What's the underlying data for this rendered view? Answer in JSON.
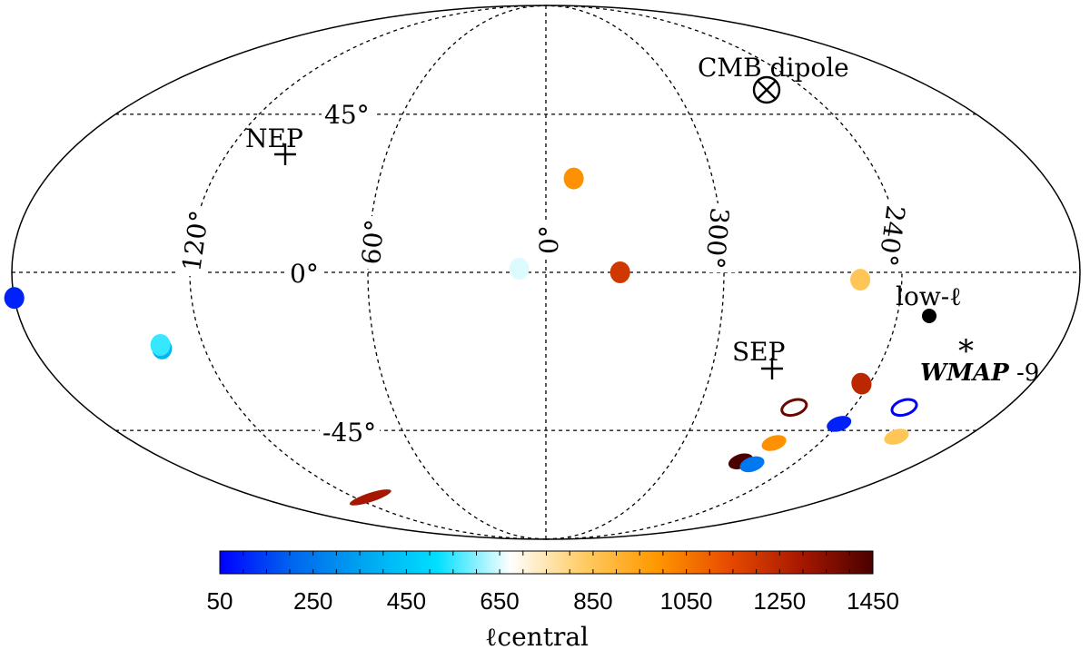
{
  "chart_data": {
    "type": "scatter",
    "projection": "mollweide",
    "title": "",
    "grid": true,
    "longitude_labels": [
      {
        "lon": 120,
        "text": "120°"
      },
      {
        "lon": 60,
        "text": "60°"
      },
      {
        "lon": 0,
        "text": "0°"
      },
      {
        "lon": 300,
        "text": "300°"
      },
      {
        "lon": 240,
        "text": "240°"
      }
    ],
    "latitude_labels": [
      {
        "lat": 45,
        "text": "45°"
      },
      {
        "lat": 0,
        "text": "0°"
      },
      {
        "lat": -45,
        "text": "-45°"
      }
    ],
    "annotations": {
      "cmb_dipole": {
        "text": "CMB dipole",
        "lon": 264,
        "lat": 48
      },
      "nep": {
        "text": "NEP",
        "lon": 96,
        "lat": 30
      },
      "sep": {
        "text": "SEP",
        "lon": 276,
        "lat": -30
      },
      "low_l": {
        "text": "low-ℓ",
        "lon": 227,
        "lat": -15
      },
      "wmap9": {
        "text_bold_italic": "WMAP",
        "text_suffix": " -9",
        "lon": 218,
        "lat": -27
      }
    },
    "points": [
      {
        "lon": 350,
        "lat": 26,
        "l_central": 1000
      },
      {
        "lon": 9,
        "lat": 1,
        "l_central": 650
      },
      {
        "lon": 335,
        "lat": 0,
        "l_central": 1200
      },
      {
        "lon": 254,
        "lat": -2,
        "l_central": 850
      },
      {
        "lon": 180,
        "lat": -7,
        "l_central": 400
      },
      {
        "lon": 180,
        "lat": -7,
        "l_central": 100
      },
      {
        "lon": 135,
        "lat": -21,
        "l_central": 400
      },
      {
        "lon": 135,
        "lat": -20,
        "l_central": 550
      },
      {
        "lon": 110,
        "lat": -68,
        "l_central": 1300
      },
      {
        "lon": 243,
        "lat": -31,
        "l_central": 1250
      },
      {
        "lon": 263,
        "lat": -38,
        "l_central": 1400,
        "style": "ring"
      },
      {
        "lon": 240,
        "lat": -43,
        "l_central": 100
      },
      {
        "lon": 260,
        "lat": -49,
        "l_central": 1000
      },
      {
        "lon": 267,
        "lat": -55,
        "l_central": 1450
      },
      {
        "lon": 260,
        "lat": -56,
        "l_central": 250
      },
      {
        "lon": 220,
        "lat": -38,
        "l_central": 50,
        "style": "ring"
      },
      {
        "lon": 210,
        "lat": -47,
        "l_central": 850
      }
    ],
    "colorbar": {
      "label": "ℓcentral",
      "range": [
        50,
        1450
      ],
      "ticks": [
        "50",
        "250",
        "450",
        "650",
        "850",
        "1050",
        "1250",
        "1450"
      ],
      "colors": [
        "#0000ff",
        "#0066ee",
        "#00a6f0",
        "#00e0ff",
        "#ffffff",
        "#ffcc66",
        "#ff9900",
        "#e84c00",
        "#a81800",
        "#4a0000"
      ]
    }
  }
}
